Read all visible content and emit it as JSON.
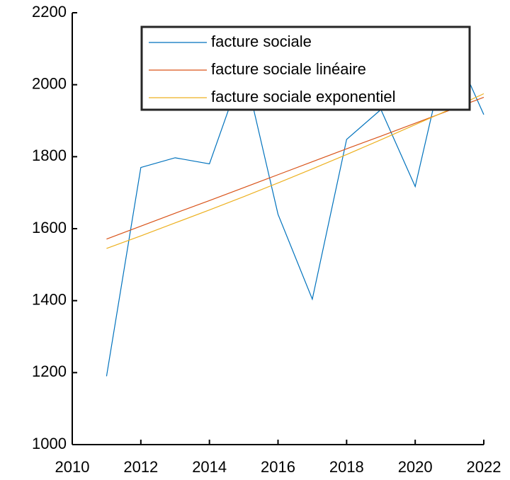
{
  "chart_data": {
    "type": "line",
    "x": [
      2011,
      2012,
      2013,
      2014,
      2015,
      2016,
      2017,
      2018,
      2019,
      2020,
      2021,
      2022
    ],
    "series": [
      {
        "name": "facture sociale",
        "color": "#0072bd",
        "values": [
          1190,
          1770,
          1797,
          1780,
          2050,
          1640,
          1404,
          1848,
          1931,
          1717,
          2130,
          1917
        ]
      },
      {
        "name": "facture sociale linéaire",
        "color": "#d95319",
        "values": [
          1571,
          1607,
          1643,
          1678,
          1714,
          1750,
          1786,
          1822,
          1857,
          1893,
          1929,
          1965
        ]
      },
      {
        "name": "facture sociale  exponentiel",
        "color": "#edb120",
        "values": [
          1545,
          1580,
          1616,
          1652,
          1689,
          1727,
          1766,
          1806,
          1847,
          1889,
          1931,
          1975
        ]
      }
    ],
    "xlim": [
      2010,
      2022
    ],
    "xticks": [
      2010,
      2012,
      2014,
      2016,
      2018,
      2020,
      2022
    ],
    "ylim": [
      1000,
      2200
    ],
    "yticks": [
      1000,
      1200,
      1400,
      1600,
      1800,
      2000,
      2200
    ],
    "grid": false,
    "legend": "top-right"
  }
}
